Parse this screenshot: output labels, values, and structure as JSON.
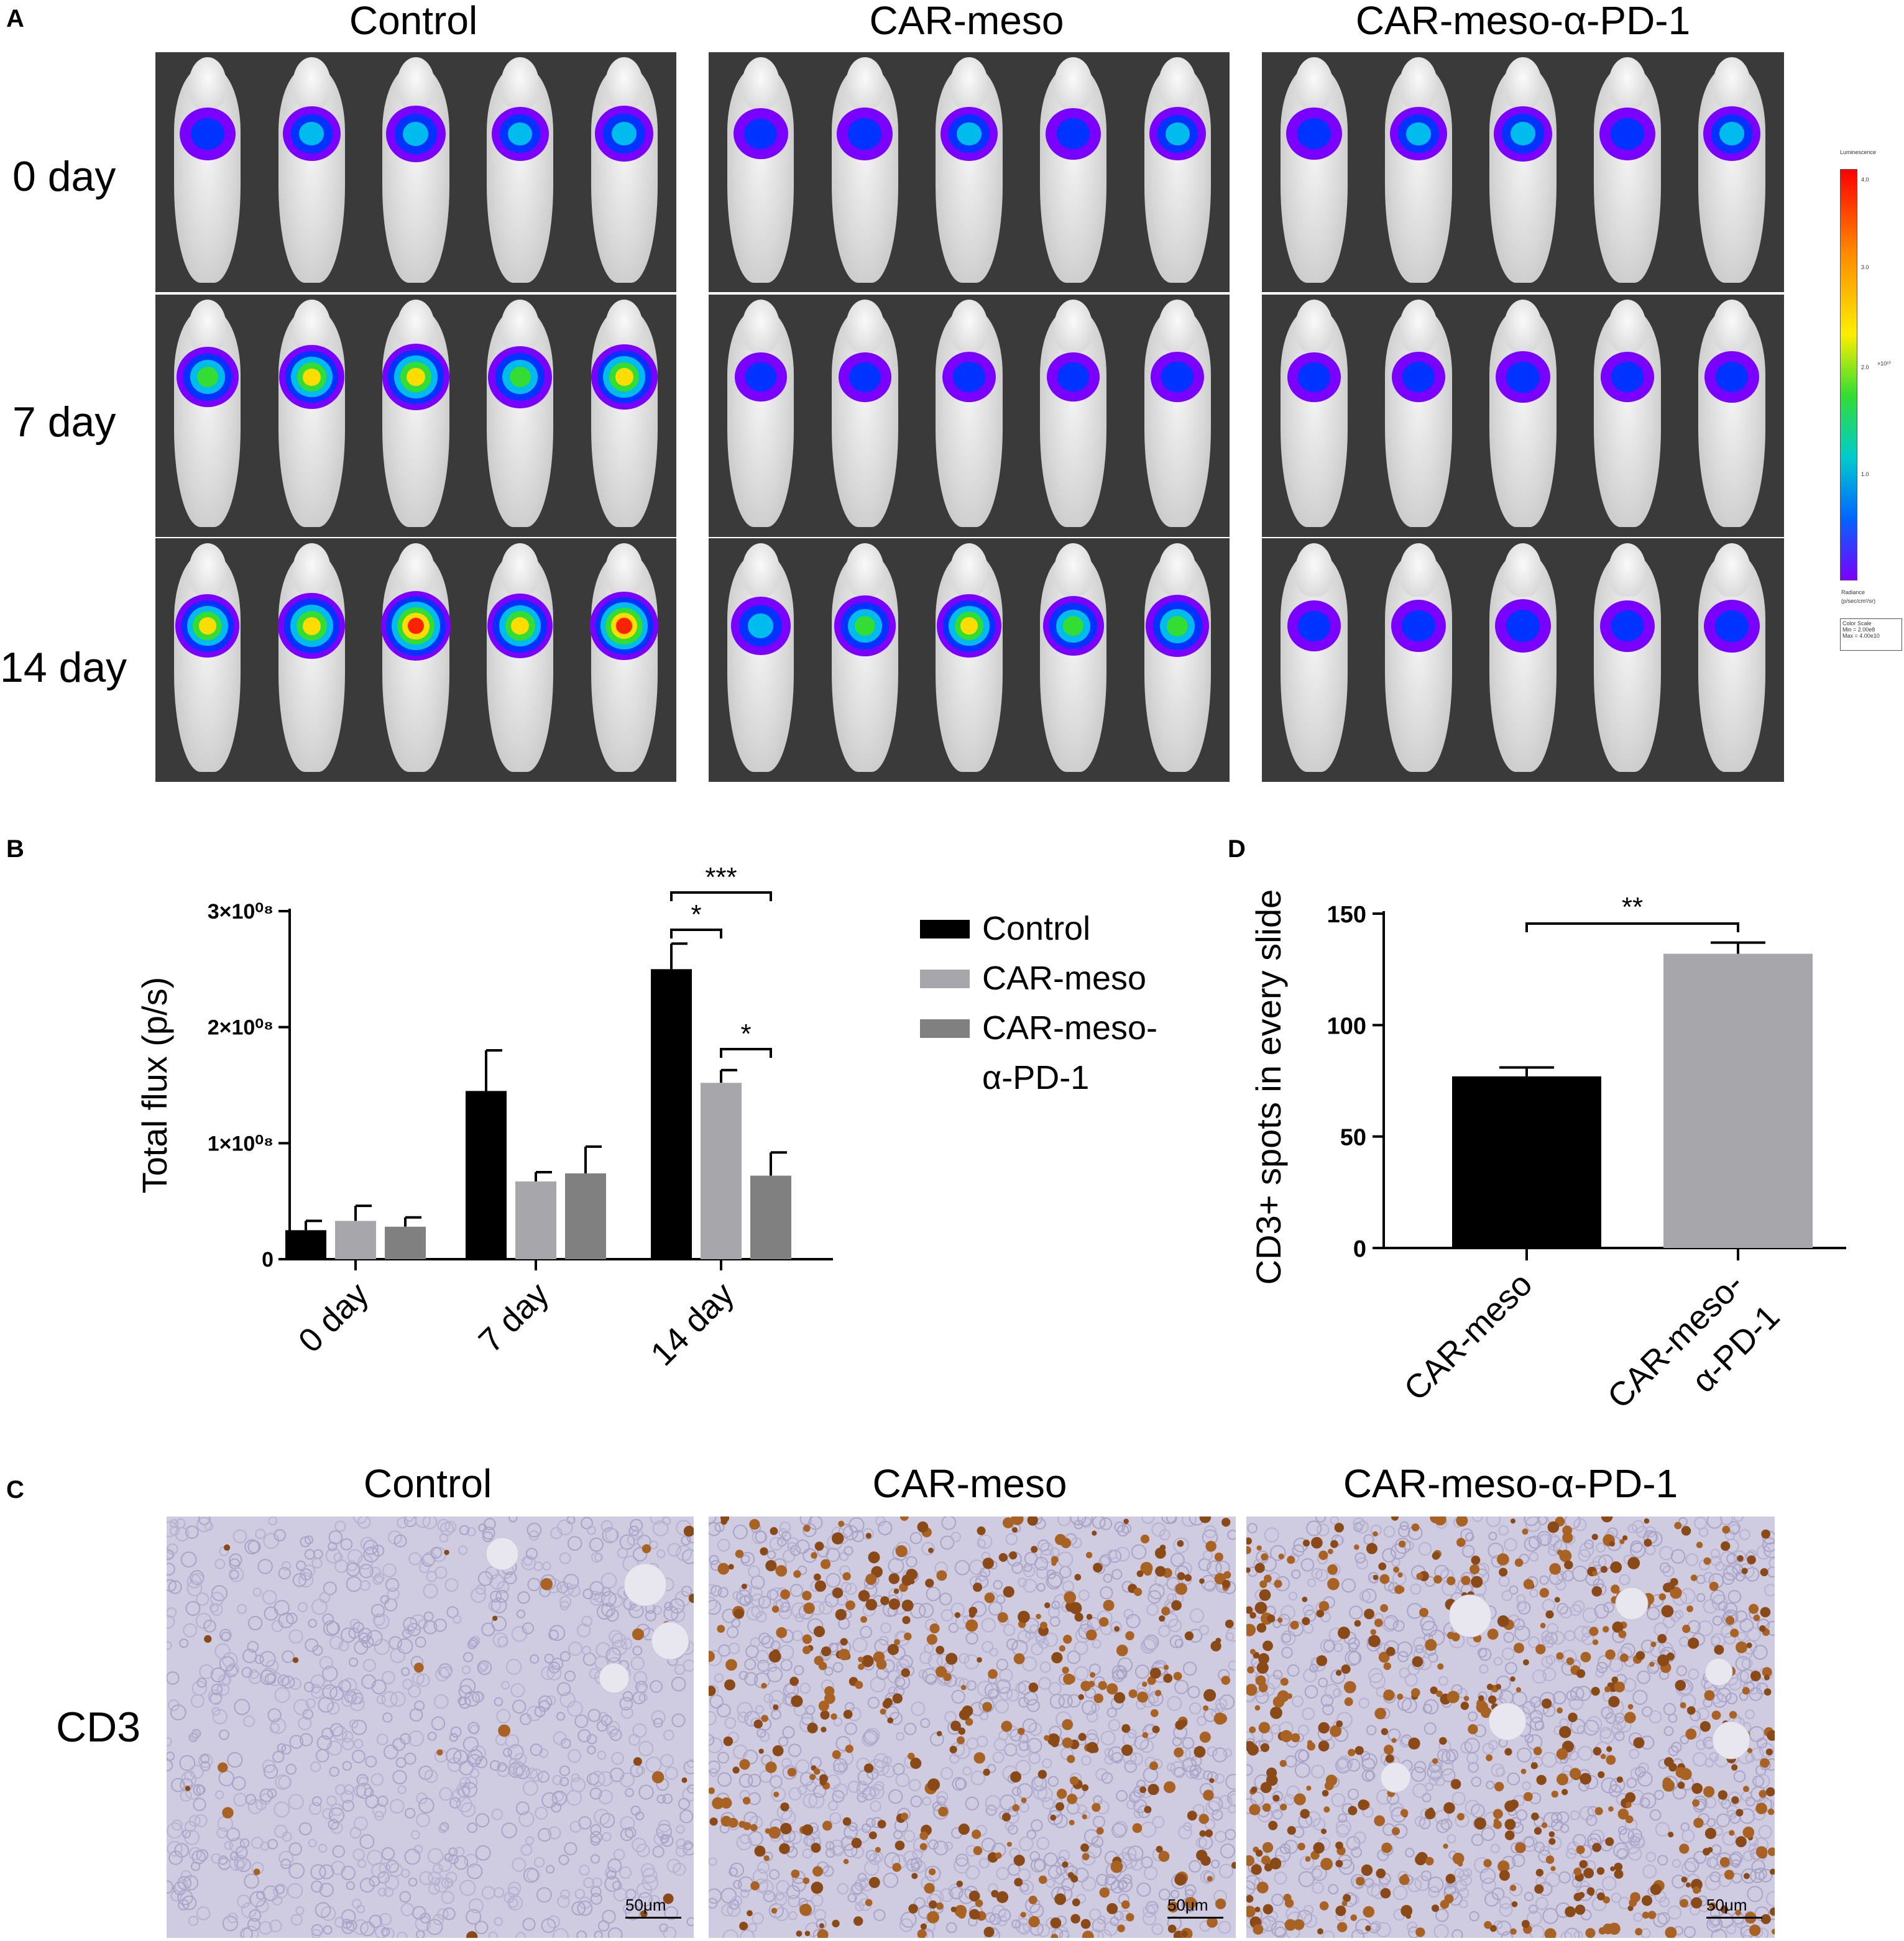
{
  "panel_letters": {
    "a": "A",
    "b": "B",
    "c": "C",
    "d": "D"
  },
  "panel_a": {
    "groups": [
      "Control",
      "CAR-meso",
      "CAR-meso-α-PD-1"
    ],
    "rows": [
      "0 day",
      "7 day",
      "14 day"
    ],
    "colorbar": {
      "title": "Luminescence",
      "ticks": [
        "4.0",
        "3.0",
        "2.0",
        "1.0"
      ],
      "unit": "×10¹⁰",
      "radiance_label": "Radiance",
      "radiance_unit": "(p/sec/cm²/sr)",
      "color_scale": "Color Scale",
      "min": "Min = 2.00e8",
      "max": "Max = 4.00e10"
    }
  },
  "panel_c": {
    "groups": [
      "Control",
      "CAR-meso",
      "CAR-meso-α-PD-1"
    ],
    "row_label": "CD3",
    "scale_bar": "50μm"
  },
  "chart_data": [
    {
      "panel": "B",
      "type": "bar",
      "categories": [
        "0 day",
        "7 day",
        "14 day"
      ],
      "series": [
        {
          "name": "Control",
          "color": "#000000",
          "values": [
            25000000,
            145000000,
            250000000
          ],
          "errors": [
            8000000,
            35000000,
            22000000
          ]
        },
        {
          "name": "CAR-meso",
          "color": "#a7a7ab",
          "values": [
            33000000,
            67000000,
            152000000
          ],
          "errors": [
            13000000,
            8000000,
            11000000
          ]
        },
        {
          "name": "CAR-meso-α-PD-1",
          "legend_lines": [
            "CAR-meso-",
            "α-PD-1"
          ],
          "color": "#808080",
          "values": [
            28000000,
            74000000,
            72000000
          ],
          "errors": [
            8000000,
            23000000,
            20000000
          ]
        }
      ],
      "ylabel": "Total flux (p/s)",
      "ylim": [
        0,
        300000000
      ],
      "yticks": [
        {
          "value": 0,
          "label": "0"
        },
        {
          "value": 100000000,
          "label": "1×10⁰⁸"
        },
        {
          "value": 200000000,
          "label": "2×10⁰⁸"
        },
        {
          "value": 300000000,
          "label": "3×10⁰⁸"
        }
      ],
      "significance": [
        {
          "group": "14 day",
          "from": 0,
          "to": 2,
          "label": "***"
        },
        {
          "group": "14 day",
          "from": 0,
          "to": 1,
          "label": "*"
        },
        {
          "group": "14 day",
          "from": 1,
          "to": 2,
          "label": "*"
        }
      ],
      "legend_position": "right"
    },
    {
      "panel": "D",
      "type": "bar",
      "categories": [
        "CAR-meso",
        "CAR-meso-α-PD-1"
      ],
      "category_lines": [
        [
          "CAR-meso"
        ],
        [
          "CAR-meso-",
          "α-PD-1"
        ]
      ],
      "values": [
        77,
        132
      ],
      "errors": [
        4,
        5
      ],
      "colors": [
        "#000000",
        "#a7a7ab"
      ],
      "ylabel": "CD3+ spots in every slide",
      "ylim": [
        0,
        150
      ],
      "yticks": [
        0,
        50,
        100,
        150
      ],
      "significance": [
        {
          "from": 0,
          "to": 1,
          "label": "**"
        }
      ]
    }
  ]
}
